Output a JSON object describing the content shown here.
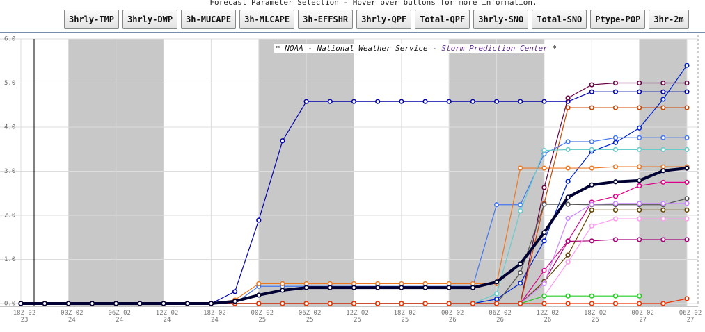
{
  "header": "Forecast Parameter Selection - Hover over buttons for more information.",
  "buttons": [
    "3hrly-TMP",
    "3hrly-DWP",
    "3h-MUCAPE",
    "3h-MLCAPE",
    "3h-EFFSHR",
    "3hrly-QPF",
    "Total-QPF",
    "3hrly-SNO",
    "Total-SNO",
    "Ptype-POP",
    "3hr-2m"
  ],
  "chart_data": {
    "type": "line",
    "annotation": {
      "prefix": "* NOAA - National Weather Service - ",
      "highlight": "Storm Prediction Center",
      "suffix": " *"
    },
    "categories": [
      "18Z 02 23",
      null,
      "00Z 02 24",
      null,
      "06Z 02 24",
      null,
      "12Z 02 24",
      null,
      "18Z 02 24",
      null,
      "00Z 02 25",
      null,
      "06Z 02 25",
      null,
      "12Z 02 25",
      null,
      "18Z 02 25",
      null,
      "00Z 02 26",
      null,
      "06Z 02 26",
      null,
      "12Z 02 26",
      null,
      "18Z 02 26",
      null,
      "00Z 02 27",
      null,
      "06Z 02 27"
    ],
    "ylim": [
      0,
      6
    ],
    "yticks": [
      {
        "value": 0,
        "label": "0.0"
      },
      {
        "value": 1,
        "label": "1.0"
      },
      {
        "value": 2,
        "label": "2.0"
      },
      {
        "value": 3,
        "label": "3.0"
      },
      {
        "value": 4,
        "label": "4.0"
      },
      {
        "value": 5,
        "label": "5.0"
      },
      {
        "value": 6,
        "label": "6.0"
      }
    ],
    "grid": true,
    "series": [
      {
        "color": "#0000aa",
        "values": [
          0,
          0,
          0,
          0,
          0,
          0,
          0,
          0,
          0,
          0.27,
          1.89,
          3.69,
          4.58,
          4.58,
          4.58,
          4.58,
          4.58,
          4.58,
          4.58,
          4.58,
          4.58,
          4.58,
          4.58,
          4.58,
          4.8,
          4.8,
          4.8,
          4.8,
          4.8
        ]
      },
      {
        "color": "#0022cc",
        "values": [
          0,
          0,
          0,
          0,
          0,
          0,
          0,
          0,
          0,
          0,
          0,
          0,
          0,
          0,
          0,
          0,
          0,
          0,
          0,
          0,
          0.1,
          0.46,
          1.42,
          2.77,
          3.45,
          3.65,
          3.98,
          4.63,
          5.4
        ]
      },
      {
        "color": "#660044",
        "values": [
          0,
          0,
          0,
          0,
          0,
          0,
          0,
          0,
          0,
          0,
          0,
          0,
          0,
          0,
          0,
          0,
          0,
          0,
          0,
          0,
          0,
          0,
          2.63,
          4.66,
          4.96,
          5.0,
          5.0,
          5.0,
          5.0
        ]
      },
      {
        "color": "#cc4400",
        "values": [
          0,
          0,
          0,
          0,
          0,
          0,
          0,
          0,
          0,
          0,
          0,
          0,
          0,
          0,
          0,
          0,
          0,
          0,
          0,
          0,
          0,
          0,
          2.27,
          4.44,
          4.44,
          4.44,
          4.44,
          4.44,
          4.44
        ]
      },
      {
        "color": "#4477ee",
        "values": [
          0,
          0,
          0,
          0,
          0,
          0,
          0,
          0,
          0,
          0,
          0.39,
          0.39,
          0.39,
          0.39,
          0.39,
          0.39,
          0.39,
          0.39,
          0.39,
          0.39,
          2.24,
          2.24,
          3.39,
          3.67,
          3.67,
          3.76,
          3.76,
          3.76,
          3.76
        ]
      },
      {
        "color": "#ee7722",
        "values": [
          0,
          0,
          0,
          0,
          0,
          0,
          0,
          0,
          0,
          0.08,
          0.45,
          0.45,
          0.45,
          0.45,
          0.45,
          0.45,
          0.45,
          0.45,
          0.45,
          0.45,
          0.45,
          3.07,
          3.07,
          3.07,
          3.07,
          3.1,
          3.1,
          3.1,
          3.1
        ]
      },
      {
        "color": "#66cccc",
        "values": [
          0,
          0,
          0,
          0,
          0,
          0,
          0,
          0,
          0,
          0,
          0,
          0,
          0,
          0,
          0,
          0,
          0,
          0,
          0,
          0,
          0.22,
          2.1,
          3.47,
          3.49,
          3.49,
          3.49,
          3.49,
          3.49,
          3.49
        ]
      },
      {
        "color": "#dd0088",
        "values": [
          0,
          0,
          0,
          0,
          0,
          0,
          0,
          0,
          0,
          0,
          0,
          0,
          0,
          0,
          0,
          0,
          0,
          0,
          0,
          0,
          0,
          0,
          0.75,
          1.42,
          2.3,
          2.43,
          2.67,
          2.75,
          2.75
        ]
      },
      {
        "color": "#aa0077",
        "values": [
          0,
          0,
          0,
          0,
          0,
          0,
          0,
          0,
          0,
          0,
          0,
          0,
          0,
          0,
          0,
          0,
          0,
          0,
          0,
          0,
          0,
          0,
          0.5,
          1.41,
          1.42,
          1.45,
          1.45,
          1.45,
          1.45
        ]
      },
      {
        "color": "#664400",
        "values": [
          0,
          0,
          0,
          0,
          0,
          0,
          0,
          0,
          0,
          0,
          0,
          0,
          0,
          0,
          0,
          0,
          0,
          0,
          0,
          0,
          0,
          0,
          0.5,
          1.1,
          2.12,
          2.12,
          2.12,
          2.12,
          2.12
        ]
      },
      {
        "color": "#555555",
        "values": [
          0,
          0,
          0,
          0,
          0,
          0,
          0,
          0,
          0,
          0,
          0,
          0,
          0,
          0,
          0,
          0,
          0,
          0,
          0,
          0,
          0,
          0.7,
          2.25,
          2.25,
          2.24,
          2.24,
          2.24,
          2.24,
          2.38
        ]
      },
      {
        "color": "#ff99ee",
        "values": [
          0,
          0,
          0,
          0,
          0,
          0,
          0,
          0,
          0,
          0,
          0,
          0,
          0,
          0,
          0,
          0,
          0,
          0,
          0,
          0,
          0,
          0,
          0.17,
          0.94,
          1.76,
          1.92,
          1.92,
          1.92,
          1.92
        ]
      },
      {
        "color": "#cc88ff",
        "values": [
          0,
          0,
          0,
          0,
          0,
          0,
          0,
          0,
          0,
          0,
          0,
          0,
          0,
          0,
          0,
          0,
          0,
          0,
          0,
          0,
          0,
          0,
          0.45,
          1.93,
          2.25,
          2.27,
          2.27,
          2.27,
          2.27
        ]
      },
      {
        "color": "#22cc22",
        "values": [
          0,
          0,
          0,
          0,
          0,
          0,
          0,
          0,
          0,
          0,
          0,
          0,
          0,
          0,
          0,
          0,
          0,
          0,
          0,
          0,
          0,
          0,
          0.17,
          0.17,
          0.17,
          0.17,
          0.17,
          null,
          null
        ]
      },
      {
        "color": "#ee3300",
        "values": [
          0,
          0,
          0,
          0,
          0,
          0,
          0,
          0,
          0,
          0,
          0,
          0,
          0,
          0,
          0,
          0,
          0,
          0,
          0,
          0,
          0,
          0,
          0,
          0,
          0,
          0,
          0,
          0,
          0.11
        ]
      },
      {
        "color": "#000033",
        "width": 4,
        "values": [
          0,
          0,
          0,
          0,
          0,
          0,
          0,
          0,
          0,
          0.05,
          0.19,
          0.3,
          0.36,
          0.36,
          0.36,
          0.36,
          0.36,
          0.36,
          0.36,
          0.36,
          0.49,
          0.9,
          1.61,
          2.41,
          2.69,
          2.76,
          2.79,
          3.01,
          3.07
        ]
      }
    ]
  }
}
